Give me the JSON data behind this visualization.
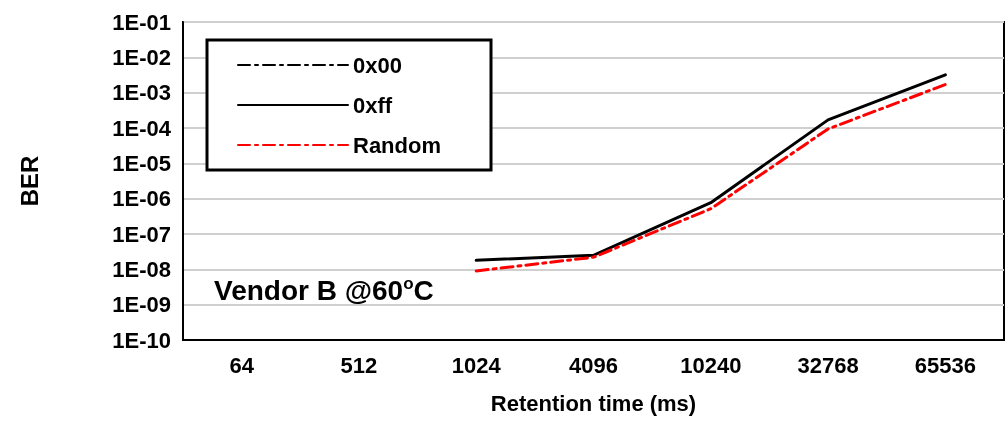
{
  "chart_data": {
    "type": "line",
    "xlabel": "Retention time (ms)",
    "ylabel": "BER",
    "categories": [
      "64",
      "512",
      "1024",
      "4096",
      "10240",
      "32768",
      "65536"
    ],
    "series": [
      {
        "name": "0x00",
        "color": "#000000",
        "line_style": "dashed",
        "values": [
          null,
          null,
          null,
          null,
          null,
          null,
          null
        ]
      },
      {
        "name": "0xff",
        "color": "#000000",
        "line_style": "solid",
        "values": [
          null,
          null,
          1.8e-08,
          2.5e-08,
          7.7e-07,
          0.00017,
          0.0032
        ]
      },
      {
        "name": "Random",
        "color": "#ff0000",
        "line_style": "dashed",
        "values": [
          null,
          null,
          9e-09,
          2.2e-08,
          5.2e-07,
          9.4e-05,
          0.0017
        ]
      }
    ],
    "log": "y",
    "ylim": [
      1e-10,
      0.1
    ],
    "yticks": [
      {
        "value": 1e-10,
        "label": "1E-10"
      },
      {
        "value": 1e-09,
        "label": "1E-09"
      },
      {
        "value": 1e-08,
        "label": "1E-08"
      },
      {
        "value": 1e-07,
        "label": "1E-07"
      },
      {
        "value": 1e-06,
        "label": "1E-06"
      },
      {
        "value": 1e-05,
        "label": "1E-05"
      },
      {
        "value": 0.0001,
        "label": "1E-04"
      },
      {
        "value": 0.001,
        "label": "1E-03"
      },
      {
        "value": 0.01,
        "label": "1E-02"
      },
      {
        "value": 0.1,
        "label": "1E-01"
      }
    ],
    "grid": "y",
    "legend": "top left",
    "marker": "none",
    "annotations": [
      "Vendor B @60$^{o}$C"
    ]
  }
}
